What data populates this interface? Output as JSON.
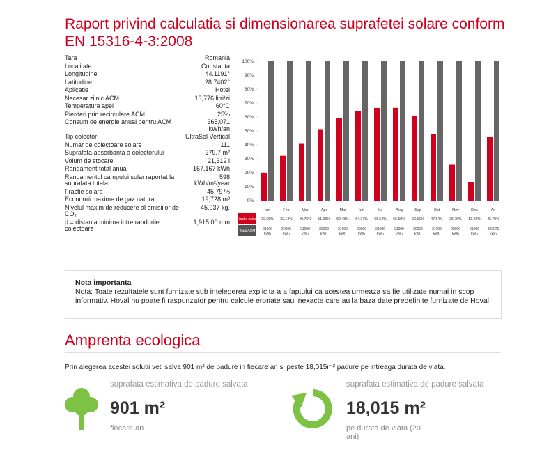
{
  "header": {
    "title": "Raport privind calculatia si dimensionarea suprafetei solare conform EN 15316-4-3:2008"
  },
  "params": [
    [
      "Tara",
      "Romania"
    ],
    [
      "Localitate",
      "Constanta"
    ],
    [
      "Longitudine",
      "44.1191°"
    ],
    [
      "Latitudine",
      "28.7402°"
    ],
    [
      "Aplicatie",
      "Hotel"
    ],
    [
      "Necesar zilnic ACM",
      "13,776 litri/zi"
    ],
    [
      "Temperatura apei",
      "60°C"
    ],
    [
      "Pierderi prin recirculare ACM",
      "25%"
    ],
    [
      "Consum de energie anual pentru ACM",
      "365,071 kWh/an"
    ],
    [
      "Tip colector",
      "UltraSol Vertical"
    ],
    [
      "Numar de colectoare solare",
      "111"
    ],
    [
      "Suprafata absorbanta a colectorului",
      "279.7 m²"
    ],
    [
      "Volum de stocare",
      "21,312 l"
    ],
    [
      "Randament total anual",
      "167,167 kWh"
    ],
    [
      "Randamentul campului solar raportat la suprafata totala",
      "598 kWh/m²/year"
    ],
    [
      "Fractie solara",
      "45.79 %"
    ],
    [
      "Economii maxime de gaz natural",
      "19,728 m³"
    ],
    [
      "Nivelul maxim de reducere al emisiilor de CO₂",
      "45,037 kg."
    ],
    [
      "d = distanta minima intre randurile colectoare",
      "1,915.00 mm"
    ]
  ],
  "chart_data": {
    "type": "bar",
    "categories": [
      "Ian",
      "Feb",
      "Mar",
      "Apr",
      "Mai",
      "Iun",
      "Iul",
      "Aug",
      "Sep",
      "Oct",
      "Nov",
      "Dec",
      "An"
    ],
    "values": [
      20.08,
      32.14,
      40.75,
      51.28,
      59.48,
      64.37,
      66.54,
      66.59,
      60.56,
      47.84,
      25.75,
      13.42,
      45.79
    ],
    "value_labels": [
      "20.08%",
      "32.14%",
      "40.75%",
      "51.28%",
      "59.48%",
      "64.37%",
      "66.54%",
      "66.59%",
      "60.56%",
      "47.84%",
      "25.75%",
      "13.42%",
      "45.79%"
    ],
    "color": "#d2001f",
    "background_color": "#666666",
    "row_labels": [
      "Fractie solara",
      "Total ACM"
    ],
    "total_acm": {
      "values": [
        31006,
        28005,
        31006,
        30006,
        31006,
        30006,
        31006,
        31006,
        30006,
        31006,
        30006,
        31006,
        365071
      ],
      "unit": "kWh"
    },
    "ylim": [
      0,
      100
    ],
    "yticks": [
      {
        "value": 0,
        "label": "0%"
      },
      {
        "value": 10,
        "label": "10%"
      },
      {
        "value": 20,
        "label": "20%"
      },
      {
        "value": 30,
        "label": "30%"
      },
      {
        "value": 40,
        "label": "40%"
      },
      {
        "value": 50,
        "label": "50%"
      },
      {
        "value": 60,
        "label": "60%"
      },
      {
        "value": 70,
        "label": "70%"
      },
      {
        "value": 80,
        "label": "80%"
      },
      {
        "value": 90,
        "label": "90%"
      },
      {
        "value": 100,
        "label": "100%"
      }
    ]
  },
  "note": {
    "title": "Nota importanta",
    "text": "Nota: Toate rezultatele sunt furnizate sub intelegerea explicita a a faptului ca acestea urmeaza sa fie utilizate numai in scop informativ. Hoval nu poate fi raspunzator pentru calcule eronate sau inexacte care au la baza date predefinite furnizate de Hoval."
  },
  "eco": {
    "title": "Amprenta ecologica",
    "sentence": "Prin alegerea acestei solutii veti salva 901 m² de padure in fiecare an si peste 18,015m² padure pe intreaga durata de viata.",
    "blocks": [
      {
        "caption": "suprafata estimativa de padure salvata",
        "value": "901 m²",
        "sub": "fiecare an"
      },
      {
        "caption": "suprafata estimativa de padure salvata",
        "value": "18,015 m²",
        "sub": "pe durata de viata (20 ani)"
      }
    ]
  }
}
